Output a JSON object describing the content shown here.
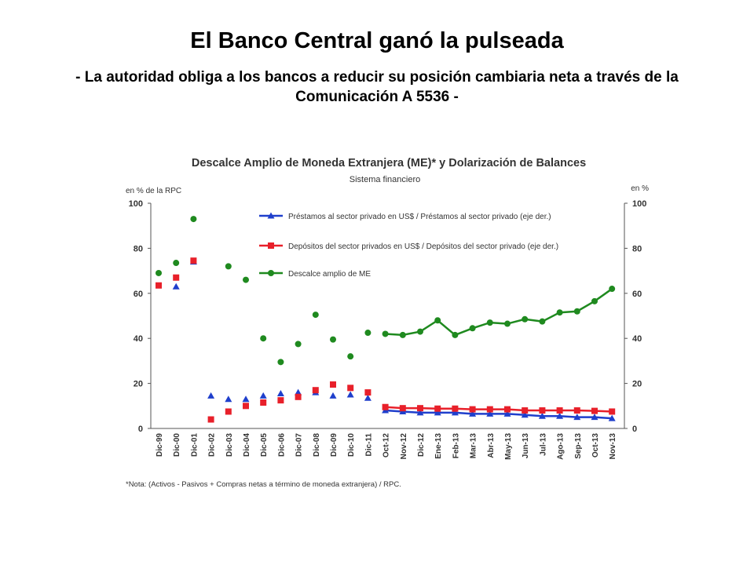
{
  "slide": {
    "title": "El Banco Central ganó la pulseada",
    "subtitle": "- La autoridad obliga a los bancos a reducir su posición cambiaria neta a través de la Comunicación A 5536 -"
  },
  "chart_data": {
    "type": "scatter",
    "title": "Descalce Amplio de Moneda Extranjera (ME)* y Dolarización de Balances",
    "subtitle": "Sistema financiero",
    "ylabel_left": "en % de la RPC",
    "ylabel_right": "en %",
    "ylim": [
      0,
      100
    ],
    "yticks": [
      0,
      20,
      40,
      60,
      80,
      100
    ],
    "grid": false,
    "legend_position": "top-center",
    "categories": [
      "Dic-99",
      "Dic-00",
      "Dic-01",
      "Dic-02",
      "Dic-03",
      "Dic-04",
      "Dic-05",
      "Dic-06",
      "Dic-07",
      "Dic-08",
      "Dic-09",
      "Dic-10",
      "Dic-11",
      "Oct-12",
      "Nov-12",
      "Dic-12",
      "Ene-13",
      "Feb-13",
      "Mar-13",
      "Abr-13",
      "May-13",
      "Jun-13",
      "Jul-13",
      "Ago-13",
      "Sep-13",
      "Oct-13",
      "Nov-13"
    ],
    "series": [
      {
        "name": "Préstamos al sector privado en US$ / Préstamos al sector privado (eje der.)",
        "marker": "triangle",
        "color": "#1f3fcc",
        "values": [
          null,
          63,
          74,
          14.5,
          13,
          13,
          14.5,
          15.5,
          16,
          16,
          14.5,
          15,
          13.5,
          8,
          7.5,
          7,
          7,
          7,
          6.5,
          6.5,
          6.5,
          6,
          5.5,
          5.5,
          5,
          5,
          4.5
        ]
      },
      {
        "name": "Depósitos del sector privados en US$ / Depósitos del sector privado (eje der.)",
        "marker": "square",
        "color": "#e8202a",
        "values": [
          63.5,
          67,
          74.5,
          4,
          7.5,
          10,
          11.5,
          12.5,
          14,
          17,
          19.5,
          18,
          16,
          9.5,
          9,
          9,
          8.8,
          8.8,
          8.5,
          8.5,
          8.5,
          8,
          8,
          8,
          8,
          7.8,
          7.5
        ]
      },
      {
        "name": "Descalce amplio de ME",
        "marker": "circle",
        "color": "#1f8a1f",
        "values": [
          69,
          73.5,
          93,
          null,
          72,
          66,
          40,
          29.5,
          37.5,
          50.5,
          39.5,
          32,
          42.5,
          42,
          41.5,
          43,
          48,
          41.5,
          44.5,
          47,
          46.5,
          48.5,
          47.5,
          51.5,
          52,
          56.5,
          62
        ]
      }
    ],
    "connected_from_index": 13,
    "footnote": "*Nota: (Activos - Pasivos + Compras netas a término de moneda extranjera) / RPC."
  }
}
